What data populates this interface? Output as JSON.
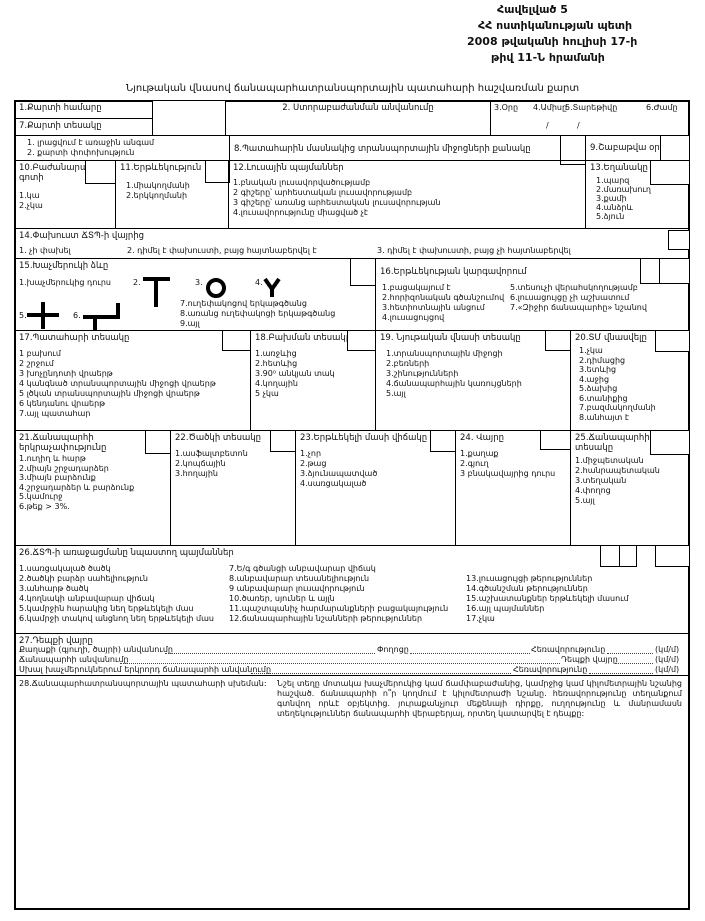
{
  "header": {
    "lines": [
      "Հավելված 5",
      "ՀՀ ոստիկանության պետի",
      "2008 թվականի հուլիսի 17-ի",
      "թիվ 11-Ն հրամանի"
    ]
  },
  "title": "Նյութական վնասով ճանապարհատրանսպորտային պատահարի հաշվառման քարտ",
  "s1": {
    "title": "1.Քարտի համարը"
  },
  "s2": {
    "title": "2. Ստորաբաժանման անվանումը"
  },
  "date": {
    "day": "3.Օրը",
    "month": "4.Ամիսը",
    "year": "5.Տարեթիվը",
    "hour": "6.Ժամը",
    "sep": "/"
  },
  "s7": {
    "title": "7.Քարտի տեսակը",
    "items": [
      "1. լրացվում է առաջին անգամ",
      "2. քարտի փոփոխություն"
    ]
  },
  "s8": {
    "title": "8.Պատահարին մասնակից տրանսպորտային միջոցների քանակը"
  },
  "s9": {
    "title": "9.Շաբաթվա օրը"
  },
  "s10": {
    "title": "10.Բաժանարար գոտի",
    "items": [
      "1.կա",
      "2.չկա"
    ]
  },
  "s11": {
    "title": "11.Երթևեկություն",
    "items": [
      "1.միակողմանի",
      "2.երկկողմանի"
    ]
  },
  "s12": {
    "title": "12.Լուսային պայմաններ",
    "items": [
      "1.բնական լուսավորվածությամբ",
      "2 գիշերը՝ արհեստական լուսավորությամբ",
      "3 գիշերը՝ առանց արհեստական լուսավորության",
      "4.լուսավորությունը միացված չէ"
    ]
  },
  "s13": {
    "title": "13.Եղանակը",
    "items": [
      "1.պարզ",
      "2.մառախուղ",
      "3.քամի",
      "4.անձրև",
      "5.ձյուն"
    ]
  },
  "s14": {
    "title": "14.Փախուստ ՃՏՊ-ի վայրից",
    "items": [
      "1. չի փախել",
      "2. դիմել է փախուստի, բայց հայտնաբերվել է",
      "3. դիմել է փախուստի, բայց չի հայտնաբերվել"
    ]
  },
  "s15": {
    "title": "15.Խաչմերուկի ձևը",
    "item1": "1.խաչմերուկից դուրս",
    "n2": "2.",
    "n3": "3.",
    "n4": "4.",
    "n5": "5.",
    "n6": "6.",
    "items": [
      "7.ուղեփակոցով երկաթգծանց",
      "8.առանց ուղեփակոցի երկաթգծանց",
      "9.այլ"
    ]
  },
  "s16": {
    "title": "16.Երթևեկության կարգավորում",
    "col1": [
      "1.բացակայում է",
      "2.հորիզոնական գծանշումով",
      "3.հետիոտնային անցում",
      "4.լուսացույցով"
    ],
    "col2": [
      "5.տեսուչի վերահսկողությամբ",
      "6.լուսացույցը չի աշխատում",
      "7.«Զիջիր ճանապարհը» նշանով"
    ]
  },
  "s17": {
    "title": "17.Պատահարի տեսակը",
    "items": [
      "1 բախում",
      "2 շրջում",
      "3 խոչընդոտի վրաերթ",
      "4 կանգնած տրանսպորտային միջոցի վրաերթ",
      "5 լծկան տրանսպորտային միջոցի վրաերթ",
      "6 կենդանու վրաերթ",
      "7.այլ պատահար"
    ]
  },
  "s18": {
    "title": "18.Բախման տեսակը",
    "items": [
      "1.առջևից",
      "2.հետևից",
      "3.90⁰ անկյան տակ",
      "4.կողային",
      "5 չկա"
    ]
  },
  "s19": {
    "title": "19. Նյութական վնասի տեսակը",
    "items": [
      "1.տրանսպորտային միջոցի",
      "2.բեռների",
      "3.շինությունների",
      "4.ճանապարհային կառույցների",
      "5.այլ"
    ]
  },
  "s20": {
    "title": "20.ՏՄ վնասվելը",
    "items": [
      "1.չկա",
      "2.դիմացից",
      "3.ետևից",
      "4.աջից",
      "5.ձախից",
      "6.տանիքից",
      "7.բազմակողմանի",
      "8.անհայտ է"
    ]
  },
  "s21": {
    "title": "21.Ճանապարհի երկրաչափությունը",
    "items": [
      "1.ուղիղ և հարթ",
      "2.միայն շրջադարձեր",
      "3.միայն բարձունք",
      "4.շրջադարձեր և բարձունք",
      "5.կամուրջ",
      "6.թեք > 3%."
    ]
  },
  "s22": {
    "title": "22.Ծածկի տեսակը",
    "items": [
      "1.ասֆալտբետոն",
      "2.կոպճային",
      "3.հողային"
    ]
  },
  "s23": {
    "title": "23.Երթևեկելի մասի վիճակը",
    "items": [
      "1.չոր",
      "2.թաց",
      "3.ձյունապատված",
      "4.սառցակալած"
    ]
  },
  "s24": {
    "title": "24. Վայրը",
    "items": [
      "1.քաղաք",
      "2.գյուղ",
      "3 բնակավայրից դուրս"
    ]
  },
  "s25": {
    "title": "25.Ճանապարհի տեսակը",
    "items": [
      "1.միջպետական",
      "2.հանրապետական",
      "3.տեղական",
      "4.փողոց",
      "5.այլ"
    ]
  },
  "s26": {
    "title": "26.ՃՏՊ-ի առաջացմանը նպաստող պայմաններ",
    "col1": [
      "1.սառցակալած ծածկ",
      "2.ծածկի բարձր սահելիություն",
      "3.անհարթ ծածկ",
      "4.կողնակի անբավարար վիճակ",
      "5.կամրջին հարակից նեղ երթևեկելի մաս",
      "6.կամրջի տակով անցնող նեղ երթևեկելի մաս"
    ],
    "col2": [
      "7.Ե/գ գծանցի անբավարար վիճակ",
      "8.անբավարար տեսանելիություն",
      "9 անբավարար լուսավորություն",
      "10.ծառեր, սյուներ և այլն",
      "11.պաշտպանիչ հարմարանքների բացակայություն",
      "12.ճանապարհային նշանների թերություններ"
    ],
    "col3": [
      "13.լուսացույցի թերություններ",
      "14.գծանշման թերություններ",
      "15.աշխատանքներ երթևեկելի մասում",
      "16.այլ պայմաններ",
      "17.չկա"
    ]
  },
  "s27": {
    "title": "27.Դեպքի վայրը",
    "city": "Քաղաքի (գյուղի, ծայրի) անվանումը",
    "street": "Փողոցը",
    "distance": "Հեռավորությունը",
    "unit": "(կմ/մ)",
    "road": "Ճանապարհի անվանումը",
    "place": "Դեպքի վայրը",
    "second_road": "Սխալ խաչմերուկներում երկրորդ ճանապարհի անվանումը"
  },
  "s28": {
    "title": "28.Ճանապարհատրանսպորտային պատահարի սխեման:",
    "text": "Նշել տեղը մոտակա խաչմերուկից կամ ճամփաբաժանից, կամրջից կամ կիլոմետրային նշանից հաշված. ճանապարհի ո՞ր կողմում է կիլոմետրաժի նշանը. հեռավորությունը տեղանքում գտնվող որևէ օբյեկտից. յուրաքանչյուր մեքենայի դիրքը, ուղղությունը և մանրամասն տեղեկություններ ճանապարհի վերաբերյալ, որտեղ կատարվել է դեպքը:"
  }
}
